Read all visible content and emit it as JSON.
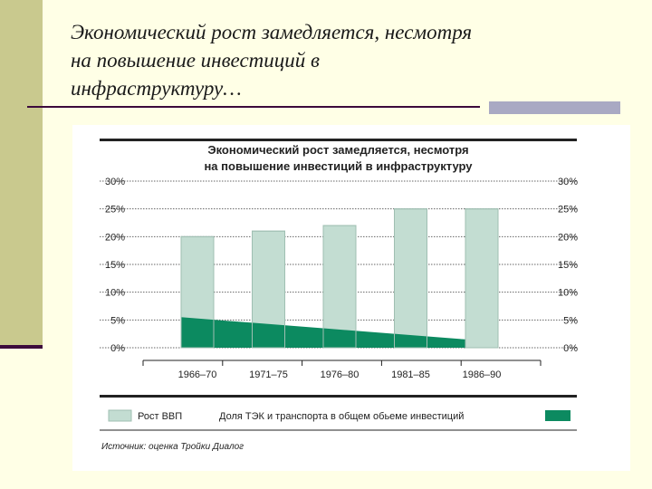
{
  "slide": {
    "title_lines": [
      "Экономический рост замедляется, несмотря",
      "на повышение инвестиций в",
      "инфраструктуру…"
    ]
  },
  "colors": {
    "bar_fill": "#c3ddd2",
    "bar_stroke": "#9fbfb2",
    "area_fill": "#0c8a60",
    "accent_bar": "#c9c98e",
    "rule": "#3c0a3c"
  },
  "chart_data": {
    "type": "bar",
    "title_lines": [
      "Экономический рост замедляется, несмотря",
      "на повышение инвестиций в инфраструктуру"
    ],
    "categories": [
      "1966–70",
      "1971–75",
      "1976–80",
      "1981–85",
      "1986–90"
    ],
    "y_ticks": [
      "30%",
      "25%",
      "20%",
      "15%",
      "10%",
      "5%",
      "0%"
    ],
    "ylim": [
      0,
      30
    ],
    "grid": true,
    "series": [
      {
        "name": "Рост ВВП",
        "kind": "bar",
        "values": [
          20,
          21,
          22,
          25,
          25
        ]
      },
      {
        "name": "Доля ТЭК и транспорта в общем обьеме инвестиций",
        "kind": "area",
        "values": [
          5.5,
          4.5,
          3.5,
          2.5,
          1.5
        ]
      }
    ],
    "legend_position": "bottom",
    "source": "Источник: оценка Тройки Диалог"
  }
}
